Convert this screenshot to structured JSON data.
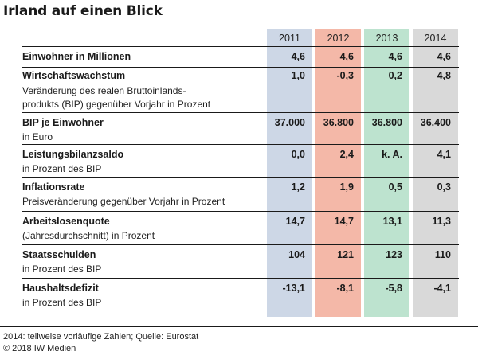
{
  "title": "Irland auf einen Blick",
  "years": [
    "2011",
    "2012",
    "2013",
    "2014"
  ],
  "rows": [
    {
      "label": "Einwohner in Millionen",
      "sub": [],
      "values": [
        "4,6",
        "4,6",
        "4,6",
        "4,6"
      ]
    },
    {
      "label": "Wirtschaftswachstum",
      "sub": [
        "Veränderung des realen Bruttoinlands-",
        "produkts (BIP) gegenüber Vorjahr in Prozent"
      ],
      "values": [
        "1,0",
        "-0,3",
        "0,2",
        "4,8"
      ]
    },
    {
      "label": "BIP je Einwohner",
      "sub": [
        "in Euro"
      ],
      "values": [
        "37.000",
        "36.800",
        "36.800",
        "36.400"
      ]
    },
    {
      "label": "Leistungsbilanzsaldo",
      "sub": [
        "in Prozent des BIP"
      ],
      "values": [
        "0,0",
        "2,4",
        "k. A.",
        "4,1"
      ]
    },
    {
      "label": "Inflationsrate",
      "sub": [
        "Preisveränderung gegenüber Vorjahr in Prozent"
      ],
      "values": [
        "1,2",
        "1,9",
        "0,5",
        "0,3"
      ]
    },
    {
      "label": "Arbeitslosenquote",
      "sub": [
        "(Jahresdurchschnitt) in Prozent"
      ],
      "values": [
        "14,7",
        "14,7",
        "13,1",
        "11,3"
      ]
    },
    {
      "label": "Staatsschulden",
      "sub": [
        "in Prozent des BIP"
      ],
      "values": [
        "104",
        "121",
        "123",
        "110"
      ]
    },
    {
      "label": "Haushaltsdefizit",
      "sub": [
        "in Prozent des BIP"
      ],
      "values": [
        "-13,1",
        "-8,1",
        "-5,8",
        "-4,1"
      ]
    }
  ],
  "footnote": "2014: teilweise vorläufige Zahlen; Quelle: Eurostat",
  "copyright": "© 2018 IW Medien"
}
